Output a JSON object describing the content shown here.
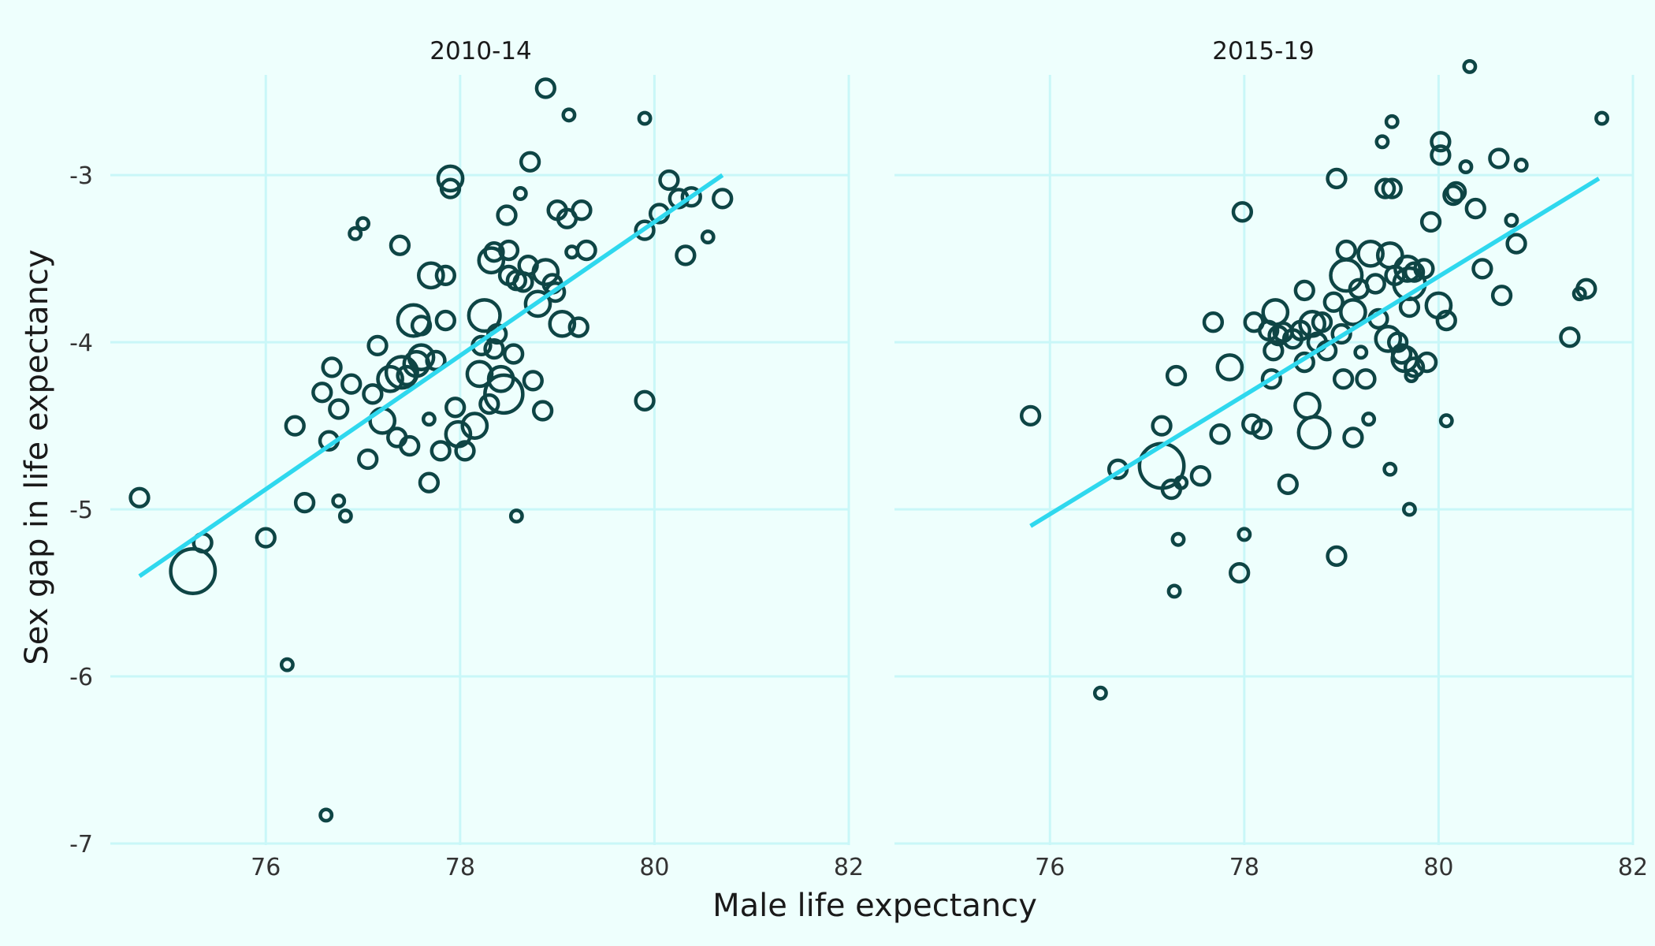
{
  "chart_data": {
    "type": "scatter",
    "xlabel": "Male life expectancy",
    "ylabel": "Sex gap in life expectancy",
    "xlim": [
      74.4,
      82
    ],
    "ylim": [
      -7,
      -2.4
    ],
    "x_ticks": [
      76,
      78,
      80,
      82
    ],
    "y_ticks": [
      -7,
      -6,
      -5,
      -4,
      -3
    ],
    "grid": true,
    "colors": {
      "background": "#EEFFFD",
      "grid": "#C9F7F8",
      "points": "#0E4545",
      "trend": "#2FD8EE"
    },
    "panels": [
      {
        "label": "2010-14",
        "trend": {
          "x": [
            74.7,
            80.7
          ],
          "y": [
            -5.4,
            -3.0
          ]
        },
        "points": [
          {
            "x": 74.7,
            "y": -4.93,
            "s": 2
          },
          {
            "x": 75.25,
            "y": -5.37,
            "s": 6
          },
          {
            "x": 75.35,
            "y": -5.2,
            "s": 2
          },
          {
            "x": 76.0,
            "y": -5.17,
            "s": 2
          },
          {
            "x": 76.22,
            "y": -5.93,
            "s": 1
          },
          {
            "x": 76.3,
            "y": -4.5,
            "s": 2
          },
          {
            "x": 76.4,
            "y": -4.96,
            "s": 2
          },
          {
            "x": 76.58,
            "y": -4.3,
            "s": 2
          },
          {
            "x": 76.62,
            "y": -6.83,
            "s": 1
          },
          {
            "x": 76.65,
            "y": -4.59,
            "s": 2
          },
          {
            "x": 76.68,
            "y": -4.15,
            "s": 2
          },
          {
            "x": 76.75,
            "y": -4.4,
            "s": 2
          },
          {
            "x": 76.75,
            "y": -4.95,
            "s": 1
          },
          {
            "x": 76.82,
            "y": -5.04,
            "s": 1
          },
          {
            "x": 76.88,
            "y": -4.25,
            "s": 2
          },
          {
            "x": 76.92,
            "y": -3.35,
            "s": 1
          },
          {
            "x": 77.0,
            "y": -3.29,
            "s": 1
          },
          {
            "x": 77.05,
            "y": -4.7,
            "s": 2
          },
          {
            "x": 77.1,
            "y": -4.31,
            "s": 2
          },
          {
            "x": 77.15,
            "y": -4.02,
            "s": 2
          },
          {
            "x": 77.2,
            "y": -4.47,
            "s": 3
          },
          {
            "x": 77.28,
            "y": -4.22,
            "s": 3
          },
          {
            "x": 77.35,
            "y": -4.57,
            "s": 2
          },
          {
            "x": 77.38,
            "y": -3.42,
            "s": 2
          },
          {
            "x": 77.4,
            "y": -4.18,
            "s": 4
          },
          {
            "x": 77.45,
            "y": -4.2,
            "s": 2
          },
          {
            "x": 77.48,
            "y": -4.62,
            "s": 2
          },
          {
            "x": 77.52,
            "y": -3.87,
            "s": 4
          },
          {
            "x": 77.55,
            "y": -4.13,
            "s": 3
          },
          {
            "x": 77.6,
            "y": -3.9,
            "s": 2
          },
          {
            "x": 77.6,
            "y": -4.09,
            "s": 3
          },
          {
            "x": 77.68,
            "y": -4.46,
            "s": 1
          },
          {
            "x": 77.68,
            "y": -4.84,
            "s": 2
          },
          {
            "x": 77.7,
            "y": -3.6,
            "s": 3
          },
          {
            "x": 77.75,
            "y": -4.11,
            "s": 2
          },
          {
            "x": 77.8,
            "y": -4.65,
            "s": 2
          },
          {
            "x": 77.85,
            "y": -3.6,
            "s": 2
          },
          {
            "x": 77.85,
            "y": -3.87,
            "s": 2
          },
          {
            "x": 77.9,
            "y": -3.02,
            "s": 3
          },
          {
            "x": 77.9,
            "y": -3.08,
            "s": 2
          },
          {
            "x": 77.95,
            "y": -4.39,
            "s": 2
          },
          {
            "x": 77.98,
            "y": -4.55,
            "s": 3
          },
          {
            "x": 78.05,
            "y": -4.65,
            "s": 2
          },
          {
            "x": 78.15,
            "y": -4.5,
            "s": 3
          },
          {
            "x": 78.2,
            "y": -4.19,
            "s": 3
          },
          {
            "x": 78.22,
            "y": -4.02,
            "s": 2
          },
          {
            "x": 78.25,
            "y": -3.84,
            "s": 4
          },
          {
            "x": 78.3,
            "y": -4.37,
            "s": 2
          },
          {
            "x": 78.32,
            "y": -3.51,
            "s": 3
          },
          {
            "x": 78.35,
            "y": -3.46,
            "s": 2
          },
          {
            "x": 78.35,
            "y": -4.04,
            "s": 2
          },
          {
            "x": 78.38,
            "y": -3.95,
            "s": 2
          },
          {
            "x": 78.42,
            "y": -4.22,
            "s": 3
          },
          {
            "x": 78.45,
            "y": -4.31,
            "s": 5
          },
          {
            "x": 78.48,
            "y": -3.24,
            "s": 2
          },
          {
            "x": 78.5,
            "y": -3.45,
            "s": 2
          },
          {
            "x": 78.5,
            "y": -3.6,
            "s": 2
          },
          {
            "x": 78.55,
            "y": -4.07,
            "s": 2
          },
          {
            "x": 78.58,
            "y": -3.63,
            "s": 2
          },
          {
            "x": 78.58,
            "y": -5.04,
            "s": 1
          },
          {
            "x": 78.62,
            "y": -3.11,
            "s": 1
          },
          {
            "x": 78.65,
            "y": -3.64,
            "s": 2
          },
          {
            "x": 78.7,
            "y": -3.54,
            "s": 2
          },
          {
            "x": 78.72,
            "y": -2.92,
            "s": 2
          },
          {
            "x": 78.75,
            "y": -4.23,
            "s": 2
          },
          {
            "x": 78.8,
            "y": -3.77,
            "s": 3
          },
          {
            "x": 78.85,
            "y": -4.41,
            "s": 2
          },
          {
            "x": 78.88,
            "y": -2.48,
            "s": 2
          },
          {
            "x": 78.88,
            "y": -3.58,
            "s": 3
          },
          {
            "x": 78.95,
            "y": -3.65,
            "s": 2
          },
          {
            "x": 78.98,
            "y": -3.7,
            "s": 2
          },
          {
            "x": 79.0,
            "y": -3.21,
            "s": 2
          },
          {
            "x": 79.05,
            "y": -3.89,
            "s": 3
          },
          {
            "x": 79.1,
            "y": -3.26,
            "s": 2
          },
          {
            "x": 79.12,
            "y": -2.64,
            "s": 1
          },
          {
            "x": 79.15,
            "y": -3.46,
            "s": 1
          },
          {
            "x": 79.22,
            "y": -3.91,
            "s": 2
          },
          {
            "x": 79.25,
            "y": -3.21,
            "s": 2
          },
          {
            "x": 79.3,
            "y": -3.45,
            "s": 2
          },
          {
            "x": 79.9,
            "y": -2.66,
            "s": 1
          },
          {
            "x": 79.9,
            "y": -3.33,
            "s": 2
          },
          {
            "x": 79.9,
            "y": -4.35,
            "s": 2
          },
          {
            "x": 80.05,
            "y": -3.23,
            "s": 2
          },
          {
            "x": 80.15,
            "y": -3.03,
            "s": 2
          },
          {
            "x": 80.25,
            "y": -3.14,
            "s": 2
          },
          {
            "x": 80.32,
            "y": -3.48,
            "s": 2
          },
          {
            "x": 80.38,
            "y": -3.13,
            "s": 2
          },
          {
            "x": 80.55,
            "y": -3.37,
            "s": 1
          },
          {
            "x": 80.7,
            "y": -3.14,
            "s": 2
          }
        ]
      },
      {
        "label": "2015-19",
        "trend": {
          "x": [
            75.8,
            81.65
          ],
          "y": [
            -5.1,
            -3.02
          ]
        },
        "points": [
          {
            "x": 75.8,
            "y": -4.44,
            "s": 2
          },
          {
            "x": 76.52,
            "y": -6.1,
            "s": 1
          },
          {
            "x": 76.7,
            "y": -4.76,
            "s": 2
          },
          {
            "x": 77.15,
            "y": -4.74,
            "s": 6
          },
          {
            "x": 77.15,
            "y": -4.5,
            "s": 2
          },
          {
            "x": 77.25,
            "y": -4.88,
            "s": 2
          },
          {
            "x": 77.28,
            "y": -5.49,
            "s": 1
          },
          {
            "x": 77.3,
            "y": -4.2,
            "s": 2
          },
          {
            "x": 77.32,
            "y": -5.18,
            "s": 1
          },
          {
            "x": 77.35,
            "y": -4.84,
            "s": 1
          },
          {
            "x": 77.55,
            "y": -4.8,
            "s": 2
          },
          {
            "x": 77.68,
            "y": -3.88,
            "s": 2
          },
          {
            "x": 77.75,
            "y": -4.55,
            "s": 2
          },
          {
            "x": 77.85,
            "y": -4.15,
            "s": 3
          },
          {
            "x": 77.95,
            "y": -5.38,
            "s": 2
          },
          {
            "x": 77.98,
            "y": -3.22,
            "s": 2
          },
          {
            "x": 78.0,
            "y": -5.15,
            "s": 1
          },
          {
            "x": 78.08,
            "y": -4.49,
            "s": 2
          },
          {
            "x": 78.1,
            "y": -3.88,
            "s": 2
          },
          {
            "x": 78.18,
            "y": -4.52,
            "s": 2
          },
          {
            "x": 78.25,
            "y": -3.93,
            "s": 2
          },
          {
            "x": 78.28,
            "y": -4.22,
            "s": 2
          },
          {
            "x": 78.3,
            "y": -4.05,
            "s": 2
          },
          {
            "x": 78.32,
            "y": -3.82,
            "s": 3
          },
          {
            "x": 78.35,
            "y": -3.96,
            "s": 2
          },
          {
            "x": 78.4,
            "y": -3.94,
            "s": 2
          },
          {
            "x": 78.45,
            "y": -4.85,
            "s": 2
          },
          {
            "x": 78.5,
            "y": -3.98,
            "s": 2
          },
          {
            "x": 78.58,
            "y": -3.93,
            "s": 2
          },
          {
            "x": 78.62,
            "y": -3.69,
            "s": 2
          },
          {
            "x": 78.62,
            "y": -4.12,
            "s": 2
          },
          {
            "x": 78.65,
            "y": -4.38,
            "s": 3
          },
          {
            "x": 78.7,
            "y": -3.89,
            "s": 3
          },
          {
            "x": 78.72,
            "y": -4.54,
            "s": 4
          },
          {
            "x": 78.75,
            "y": -4.0,
            "s": 2
          },
          {
            "x": 78.8,
            "y": -3.88,
            "s": 2
          },
          {
            "x": 78.85,
            "y": -4.05,
            "s": 2
          },
          {
            "x": 78.92,
            "y": -3.76,
            "s": 2
          },
          {
            "x": 78.95,
            "y": -3.02,
            "s": 2
          },
          {
            "x": 78.95,
            "y": -5.28,
            "s": 2
          },
          {
            "x": 79.0,
            "y": -3.95,
            "s": 2
          },
          {
            "x": 79.02,
            "y": -4.22,
            "s": 2
          },
          {
            "x": 79.05,
            "y": -3.45,
            "s": 2
          },
          {
            "x": 79.05,
            "y": -3.6,
            "s": 4
          },
          {
            "x": 79.12,
            "y": -3.82,
            "s": 3
          },
          {
            "x": 79.12,
            "y": -4.57,
            "s": 2
          },
          {
            "x": 79.18,
            "y": -3.68,
            "s": 2
          },
          {
            "x": 79.2,
            "y": -4.06,
            "s": 1
          },
          {
            "x": 79.25,
            "y": -4.22,
            "s": 2
          },
          {
            "x": 79.28,
            "y": -4.46,
            "s": 1
          },
          {
            "x": 79.3,
            "y": -3.47,
            "s": 3
          },
          {
            "x": 79.35,
            "y": -3.65,
            "s": 2
          },
          {
            "x": 79.38,
            "y": -3.86,
            "s": 2
          },
          {
            "x": 79.42,
            "y": -2.8,
            "s": 1
          },
          {
            "x": 79.45,
            "y": -3.08,
            "s": 2
          },
          {
            "x": 79.48,
            "y": -3.98,
            "s": 3
          },
          {
            "x": 79.5,
            "y": -3.48,
            "s": 3
          },
          {
            "x": 79.5,
            "y": -4.76,
            "s": 1
          },
          {
            "x": 79.52,
            "y": -3.08,
            "s": 2
          },
          {
            "x": 79.52,
            "y": -2.68,
            "s": 1
          },
          {
            "x": 79.55,
            "y": -3.6,
            "s": 2
          },
          {
            "x": 79.58,
            "y": -4.0,
            "s": 2
          },
          {
            "x": 79.62,
            "y": -4.07,
            "s": 2
          },
          {
            "x": 79.65,
            "y": -4.1,
            "s": 3
          },
          {
            "x": 79.68,
            "y": -3.56,
            "s": 3
          },
          {
            "x": 79.7,
            "y": -3.65,
            "s": 4
          },
          {
            "x": 79.7,
            "y": -3.79,
            "s": 2
          },
          {
            "x": 79.7,
            "y": -5.0,
            "s": 1
          },
          {
            "x": 79.72,
            "y": -4.2,
            "s": 1
          },
          {
            "x": 79.75,
            "y": -4.15,
            "s": 2
          },
          {
            "x": 79.75,
            "y": -3.58,
            "s": 2
          },
          {
            "x": 79.85,
            "y": -3.56,
            "s": 2
          },
          {
            "x": 79.88,
            "y": -4.12,
            "s": 2
          },
          {
            "x": 79.92,
            "y": -3.28,
            "s": 2
          },
          {
            "x": 80.0,
            "y": -3.78,
            "s": 3
          },
          {
            "x": 80.02,
            "y": -2.8,
            "s": 2
          },
          {
            "x": 80.02,
            "y": -2.88,
            "s": 2
          },
          {
            "x": 80.08,
            "y": -3.87,
            "s": 2
          },
          {
            "x": 80.08,
            "y": -4.47,
            "s": 1
          },
          {
            "x": 80.15,
            "y": -3.12,
            "s": 2
          },
          {
            "x": 80.18,
            "y": -3.1,
            "s": 2
          },
          {
            "x": 80.28,
            "y": -2.95,
            "s": 1
          },
          {
            "x": 80.32,
            "y": -2.35,
            "s": 1
          },
          {
            "x": 80.38,
            "y": -3.2,
            "s": 2
          },
          {
            "x": 80.45,
            "y": -3.56,
            "s": 2
          },
          {
            "x": 80.62,
            "y": -2.9,
            "s": 2
          },
          {
            "x": 80.65,
            "y": -3.72,
            "s": 2
          },
          {
            "x": 80.75,
            "y": -3.27,
            "s": 1
          },
          {
            "x": 80.8,
            "y": -3.41,
            "s": 2
          },
          {
            "x": 80.85,
            "y": -2.94,
            "s": 1
          },
          {
            "x": 81.35,
            "y": -3.97,
            "s": 2
          },
          {
            "x": 81.45,
            "y": -3.71,
            "s": 1
          },
          {
            "x": 81.52,
            "y": -3.68,
            "s": 2
          },
          {
            "x": 81.68,
            "y": -2.66,
            "s": 1
          }
        ]
      }
    ]
  }
}
